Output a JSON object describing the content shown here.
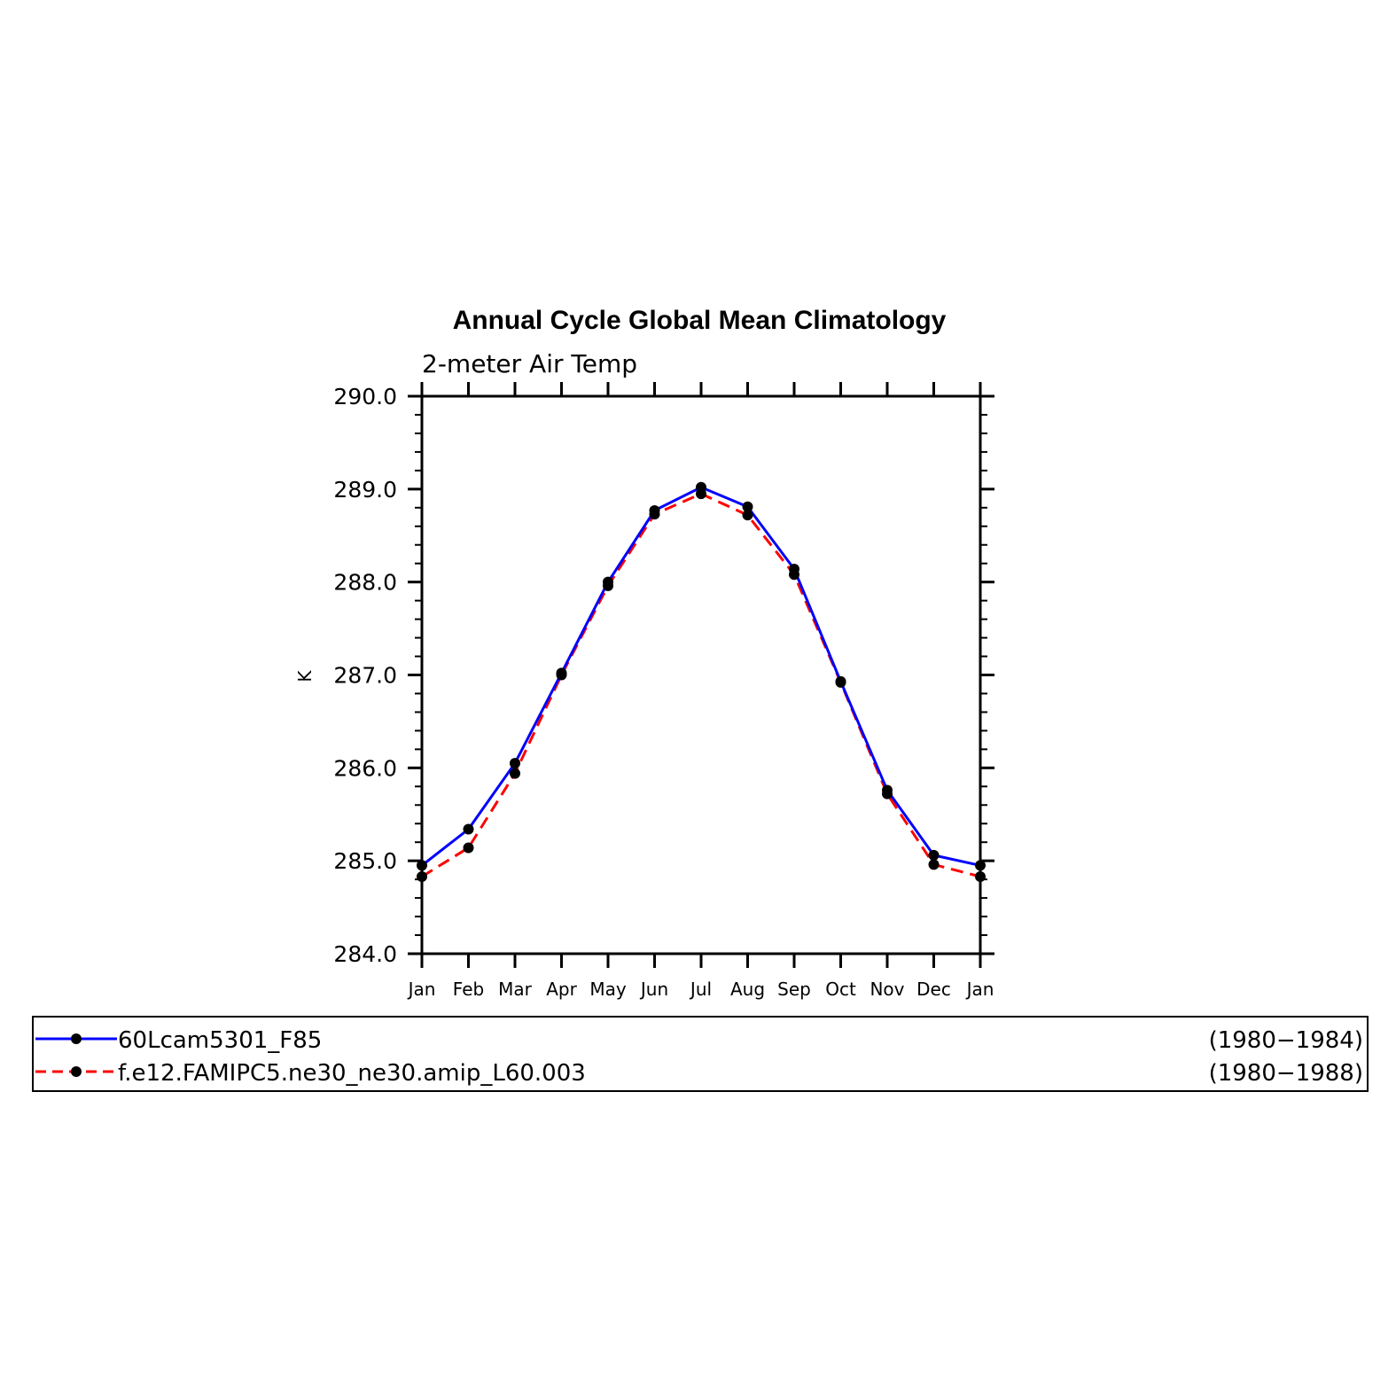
{
  "chart_data": {
    "type": "line",
    "title": "Annual Cycle Global Mean Climatology",
    "subtitle": "2-meter Air Temp",
    "xlabel": "",
    "ylabel": "K",
    "categories": [
      "Jan",
      "Feb",
      "Mar",
      "Apr",
      "May",
      "Jun",
      "Jul",
      "Aug",
      "Sep",
      "Oct",
      "Nov",
      "Dec",
      "Jan"
    ],
    "ylim": [
      284.0,
      290.0
    ],
    "yticks": [
      "284.0",
      "285.0",
      "286.0",
      "287.0",
      "288.0",
      "289.0",
      "290.0"
    ],
    "grid": false,
    "legend_position": "bottom",
    "series": [
      {
        "name": "60Lcam5301_F85",
        "period": "(1980−1984)",
        "color": "#0000ff",
        "dash": "solid",
        "values": [
          284.95,
          285.34,
          286.05,
          287.02,
          288.0,
          288.77,
          289.02,
          288.81,
          288.14,
          286.93,
          285.76,
          285.06,
          284.95
        ]
      },
      {
        "name": "f.e12.FAMIPC5.ne30_ne30.amip_L60.003",
        "period": "(1980−1988)",
        "color": "#ff0000",
        "dash": "dashed",
        "values": [
          284.83,
          285.14,
          285.94,
          287.0,
          287.96,
          288.73,
          288.95,
          288.72,
          288.08,
          286.92,
          285.72,
          284.96,
          284.83
        ]
      }
    ]
  }
}
